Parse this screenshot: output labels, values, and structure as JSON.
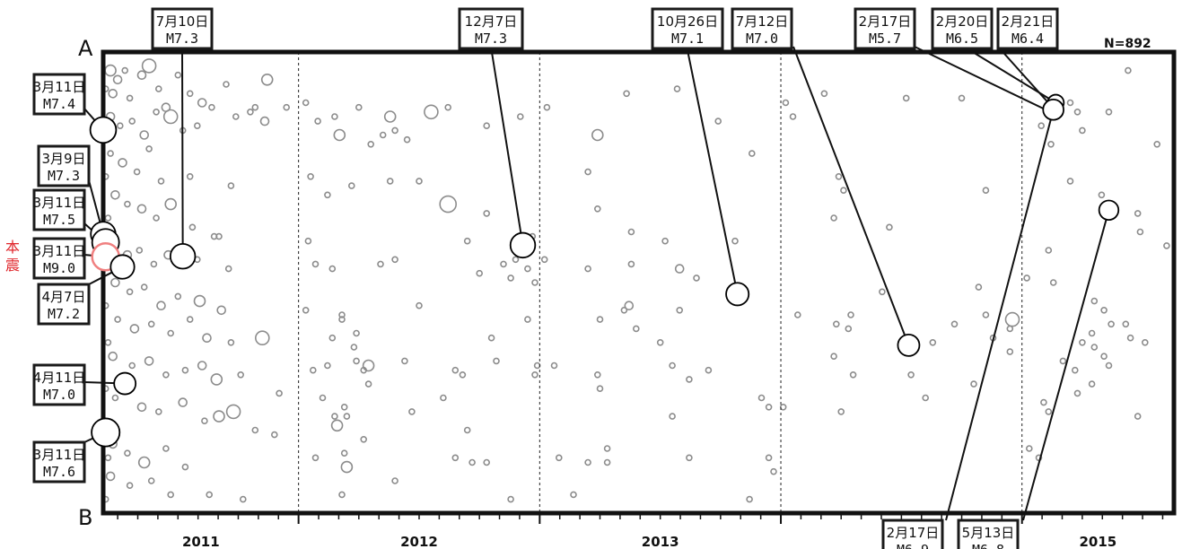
{
  "chart_data": {
    "type": "scatter",
    "title": "",
    "count_label": "N=892",
    "axis_start_label": "A",
    "axis_end_label": "B",
    "xlim": [
      2011.19,
      2015.63
    ],
    "ylim": [
      0,
      1
    ],
    "year_labels": [
      "2011",
      "2012",
      "2013",
      "2014",
      "2015"
    ],
    "year_boundaries": [
      2012.0,
      2013.0,
      2014.0,
      2015.0,
      2016.0
    ],
    "mainshock_label": "本震",
    "colors": {
      "background_event": "#8c8c8c",
      "major_event": "#000000",
      "mainshock": "#f08080",
      "mainshock_label": "#e0262b"
    },
    "major_events": [
      {
        "id": "e1",
        "date": "3月11日",
        "mag": "M7.4",
        "x": 2011.19,
        "y": 0.169
      },
      {
        "id": "e2",
        "date": "3月9日",
        "mag": "M7.3",
        "x": 2011.19,
        "y": 0.395
      },
      {
        "id": "e3",
        "date": "3月11日",
        "mag": "M7.5",
        "x": 2011.2,
        "y": 0.413
      },
      {
        "id": "e4",
        "date": "3月11日",
        "mag": "M9.0",
        "x": 2011.2,
        "y": 0.444,
        "mainshock": true
      },
      {
        "id": "e5",
        "date": "4月7日",
        "mag": "M7.2",
        "x": 2011.27,
        "y": 0.466
      },
      {
        "id": "e6",
        "date": "4月11日",
        "mag": "M7.0",
        "x": 2011.28,
        "y": 0.719
      },
      {
        "id": "e7",
        "date": "3月11日",
        "mag": "M7.6",
        "x": 2011.2,
        "y": 0.825
      },
      {
        "id": "e8",
        "date": "7月10日",
        "mag": "M7.3",
        "x": 2011.52,
        "y": 0.443
      },
      {
        "id": "e9",
        "date": "12月7日",
        "mag": "M7.3",
        "x": 2012.93,
        "y": 0.419
      },
      {
        "id": "e10",
        "date": "10月26日",
        "mag": "M7.1",
        "x": 2013.82,
        "y": 0.525
      },
      {
        "id": "e11",
        "date": "7月12日",
        "mag": "M7.0",
        "x": 2014.53,
        "y": 0.636
      },
      {
        "id": "e12",
        "date": "2月17日",
        "mag": "M5.7",
        "x": 2015.13,
        "y": 0.133
      },
      {
        "id": "e13",
        "date": "2月20日",
        "mag": "M6.5",
        "x": 2015.14,
        "y": 0.11
      },
      {
        "id": "e14",
        "date": "2月21日",
        "mag": "M6.4",
        "x": 2015.14,
        "y": 0.128
      },
      {
        "id": "e15",
        "date": "2月17日",
        "mag": "M6.9",
        "x": 2015.13,
        "y": 0.125
      },
      {
        "id": "e16",
        "date": "5月13日",
        "mag": "M6.8",
        "x": 2015.36,
        "y": 0.343
      }
    ],
    "events": [
      [
        2011.22,
        0.04,
        4
      ],
      [
        2011.25,
        0.06,
        3
      ],
      [
        2011.28,
        0.04,
        2
      ],
      [
        2011.23,
        0.09,
        3
      ],
      [
        2011.3,
        0.1,
        2
      ],
      [
        2011.35,
        0.05,
        3
      ],
      [
        2011.38,
        0.03,
        5
      ],
      [
        2011.42,
        0.08,
        2
      ],
      [
        2011.45,
        0.12,
        3
      ],
      [
        2011.5,
        0.05,
        2
      ],
      [
        2011.55,
        0.09,
        2
      ],
      [
        2011.6,
        0.11,
        3
      ],
      [
        2011.7,
        0.07,
        2
      ],
      [
        2011.8,
        0.13,
        2
      ],
      [
        2011.87,
        0.06,
        4
      ],
      [
        2011.95,
        0.12,
        2
      ],
      [
        2011.22,
        0.14,
        3
      ],
      [
        2011.26,
        0.16,
        2
      ],
      [
        2011.31,
        0.15,
        2
      ],
      [
        2011.36,
        0.18,
        3
      ],
      [
        2011.41,
        0.13,
        2
      ],
      [
        2011.47,
        0.14,
        5
      ],
      [
        2011.52,
        0.17,
        2
      ],
      [
        2011.58,
        0.16,
        2
      ],
      [
        2011.64,
        0.12,
        2
      ],
      [
        2011.74,
        0.14,
        2
      ],
      [
        2011.82,
        0.12,
        2
      ],
      [
        2011.86,
        0.15,
        3
      ],
      [
        2011.22,
        0.22,
        2
      ],
      [
        2011.27,
        0.24,
        3
      ],
      [
        2011.33,
        0.26,
        2
      ],
      [
        2011.38,
        0.21,
        2
      ],
      [
        2011.43,
        0.28,
        2
      ],
      [
        2011.55,
        0.27,
        2
      ],
      [
        2011.72,
        0.29,
        2
      ],
      [
        2011.24,
        0.31,
        3
      ],
      [
        2011.29,
        0.33,
        2
      ],
      [
        2011.35,
        0.34,
        3
      ],
      [
        2011.41,
        0.36,
        2
      ],
      [
        2011.47,
        0.33,
        4
      ],
      [
        2011.56,
        0.38,
        2
      ],
      [
        2011.65,
        0.4,
        2
      ],
      [
        2011.23,
        0.42,
        2
      ],
      [
        2011.29,
        0.44,
        3
      ],
      [
        2011.34,
        0.43,
        2
      ],
      [
        2011.4,
        0.46,
        2
      ],
      [
        2011.46,
        0.44,
        3
      ],
      [
        2011.58,
        0.45,
        2
      ],
      [
        2011.67,
        0.4,
        2
      ],
      [
        2011.71,
        0.47,
        2
      ],
      [
        2011.24,
        0.5,
        3
      ],
      [
        2011.3,
        0.52,
        2
      ],
      [
        2011.36,
        0.51,
        2
      ],
      [
        2011.43,
        0.55,
        3
      ],
      [
        2011.5,
        0.53,
        2
      ],
      [
        2011.59,
        0.54,
        4
      ],
      [
        2011.68,
        0.56,
        3
      ],
      [
        2011.25,
        0.58,
        2
      ],
      [
        2011.32,
        0.6,
        3
      ],
      [
        2011.39,
        0.59,
        2
      ],
      [
        2011.47,
        0.61,
        2
      ],
      [
        2011.55,
        0.58,
        2
      ],
      [
        2011.62,
        0.62,
        3
      ],
      [
        2011.72,
        0.63,
        2
      ],
      [
        2011.85,
        0.62,
        5
      ],
      [
        2011.23,
        0.66,
        3
      ],
      [
        2011.31,
        0.68,
        2
      ],
      [
        2011.38,
        0.67,
        3
      ],
      [
        2011.45,
        0.7,
        2
      ],
      [
        2011.53,
        0.69,
        2
      ],
      [
        2011.6,
        0.68,
        3
      ],
      [
        2011.66,
        0.71,
        4
      ],
      [
        2011.76,
        0.7,
        2
      ],
      [
        2011.92,
        0.74,
        2
      ],
      [
        2011.24,
        0.75,
        2
      ],
      [
        2011.35,
        0.77,
        3
      ],
      [
        2011.42,
        0.78,
        2
      ],
      [
        2011.52,
        0.76,
        3
      ],
      [
        2011.61,
        0.8,
        2
      ],
      [
        2011.67,
        0.79,
        4
      ],
      [
        2011.73,
        0.78,
        5
      ],
      [
        2011.82,
        0.82,
        2
      ],
      [
        2011.9,
        0.83,
        2
      ],
      [
        2011.23,
        0.85,
        3
      ],
      [
        2011.29,
        0.87,
        2
      ],
      [
        2011.36,
        0.89,
        4
      ],
      [
        2011.45,
        0.86,
        2
      ],
      [
        2011.53,
        0.9,
        2
      ],
      [
        2011.22,
        0.92,
        3
      ],
      [
        2011.3,
        0.94,
        2
      ],
      [
        2011.39,
        0.93,
        2
      ],
      [
        2011.47,
        0.96,
        2
      ],
      [
        2011.63,
        0.96,
        2
      ],
      [
        2011.77,
        0.97,
        2
      ],
      [
        2011.2,
        0.08,
        2
      ],
      [
        2011.21,
        0.18,
        2
      ],
      [
        2011.2,
        0.27,
        2
      ],
      [
        2011.21,
        0.36,
        2
      ],
      [
        2011.2,
        0.55,
        2
      ],
      [
        2011.21,
        0.63,
        2
      ],
      [
        2011.2,
        0.73,
        2
      ],
      [
        2011.21,
        0.88,
        2
      ],
      [
        2011.2,
        0.97,
        2
      ],
      [
        2012.03,
        0.11,
        2
      ],
      [
        2012.08,
        0.15,
        2
      ],
      [
        2012.15,
        0.14,
        2
      ],
      [
        2012.25,
        0.12,
        2
      ],
      [
        2012.38,
        0.14,
        4
      ],
      [
        2012.4,
        0.17,
        2
      ],
      [
        2012.45,
        0.19,
        2
      ],
      [
        2012.55,
        0.13,
        5
      ],
      [
        2012.62,
        0.12,
        2
      ],
      [
        2012.78,
        0.16,
        2
      ],
      [
        2012.92,
        0.14,
        2
      ],
      [
        2012.35,
        0.18,
        2
      ],
      [
        2012.3,
        0.2,
        2
      ],
      [
        2012.17,
        0.18,
        4
      ],
      [
        2012.05,
        0.27,
        2
      ],
      [
        2012.12,
        0.31,
        2
      ],
      [
        2012.22,
        0.29,
        2
      ],
      [
        2012.38,
        0.28,
        2
      ],
      [
        2012.5,
        0.28,
        2
      ],
      [
        2012.62,
        0.33,
        6
      ],
      [
        2012.78,
        0.35,
        2
      ],
      [
        2012.7,
        0.41,
        2
      ],
      [
        2012.85,
        0.46,
        2
      ],
      [
        2012.9,
        0.45,
        2
      ],
      [
        2012.95,
        0.47,
        2
      ],
      [
        2012.97,
        0.4,
        2
      ],
      [
        2012.04,
        0.41,
        2
      ],
      [
        2012.07,
        0.46,
        2
      ],
      [
        2012.14,
        0.47,
        2
      ],
      [
        2012.34,
        0.46,
        2
      ],
      [
        2012.4,
        0.45,
        2
      ],
      [
        2012.75,
        0.48,
        2
      ],
      [
        2012.88,
        0.49,
        2
      ],
      [
        2012.98,
        0.5,
        2
      ],
      [
        2012.03,
        0.56,
        2
      ],
      [
        2012.18,
        0.57,
        2
      ],
      [
        2012.24,
        0.61,
        2
      ],
      [
        2012.23,
        0.64,
        2
      ],
      [
        2012.18,
        0.58,
        2
      ],
      [
        2012.14,
        0.62,
        2
      ],
      [
        2012.5,
        0.55,
        2
      ],
      [
        2012.8,
        0.62,
        2
      ],
      [
        2012.95,
        0.58,
        2
      ],
      [
        2012.06,
        0.69,
        2
      ],
      [
        2012.12,
        0.68,
        2
      ],
      [
        2012.24,
        0.67,
        2
      ],
      [
        2012.27,
        0.69,
        2
      ],
      [
        2012.29,
        0.68,
        4
      ],
      [
        2012.29,
        0.72,
        2
      ],
      [
        2012.44,
        0.67,
        2
      ],
      [
        2012.65,
        0.69,
        2
      ],
      [
        2012.68,
        0.7,
        2
      ],
      [
        2012.82,
        0.67,
        2
      ],
      [
        2012.98,
        0.7,
        2
      ],
      [
        2012.99,
        0.68,
        2
      ],
      [
        2012.1,
        0.75,
        2
      ],
      [
        2012.15,
        0.79,
        2
      ],
      [
        2012.16,
        0.81,
        4
      ],
      [
        2012.2,
        0.79,
        2
      ],
      [
        2012.19,
        0.77,
        2
      ],
      [
        2012.27,
        0.84,
        2
      ],
      [
        2012.47,
        0.78,
        2
      ],
      [
        2012.6,
        0.75,
        2
      ],
      [
        2012.7,
        0.82,
        2
      ],
      [
        2012.07,
        0.88,
        2
      ],
      [
        2012.19,
        0.87,
        2
      ],
      [
        2012.2,
        0.9,
        4
      ],
      [
        2012.65,
        0.88,
        2
      ],
      [
        2012.72,
        0.89,
        2
      ],
      [
        2012.78,
        0.89,
        2
      ],
      [
        2012.18,
        0.96,
        2
      ],
      [
        2012.4,
        0.93,
        2
      ],
      [
        2012.88,
        0.97,
        2
      ],
      [
        2013.03,
        0.12,
        2
      ],
      [
        2013.24,
        0.18,
        4
      ],
      [
        2013.36,
        0.09,
        2
      ],
      [
        2013.57,
        0.08,
        2
      ],
      [
        2013.74,
        0.15,
        2
      ],
      [
        2013.88,
        0.22,
        2
      ],
      [
        2013.2,
        0.26,
        2
      ],
      [
        2013.24,
        0.34,
        2
      ],
      [
        2013.38,
        0.39,
        2
      ],
      [
        2013.52,
        0.41,
        2
      ],
      [
        2013.81,
        0.41,
        2
      ],
      [
        2013.02,
        0.45,
        2
      ],
      [
        2013.2,
        0.47,
        2
      ],
      [
        2013.38,
        0.46,
        2
      ],
      [
        2013.58,
        0.47,
        3
      ],
      [
        2013.65,
        0.49,
        2
      ],
      [
        2013.25,
        0.58,
        2
      ],
      [
        2013.35,
        0.56,
        2
      ],
      [
        2013.37,
        0.55,
        3
      ],
      [
        2013.58,
        0.56,
        2
      ],
      [
        2013.4,
        0.6,
        2
      ],
      [
        2013.5,
        0.63,
        2
      ],
      [
        2013.06,
        0.68,
        2
      ],
      [
        2013.24,
        0.7,
        2
      ],
      [
        2013.55,
        0.68,
        2
      ],
      [
        2013.62,
        0.71,
        2
      ],
      [
        2013.7,
        0.69,
        2
      ],
      [
        2013.25,
        0.73,
        2
      ],
      [
        2013.55,
        0.79,
        2
      ],
      [
        2013.92,
        0.75,
        2
      ],
      [
        2013.95,
        0.77,
        2
      ],
      [
        2013.08,
        0.88,
        2
      ],
      [
        2013.2,
        0.89,
        2
      ],
      [
        2013.28,
        0.89,
        2
      ],
      [
        2013.28,
        0.86,
        2
      ],
      [
        2013.62,
        0.88,
        2
      ],
      [
        2013.95,
        0.88,
        2
      ],
      [
        2013.97,
        0.91,
        2
      ],
      [
        2013.14,
        0.96,
        2
      ],
      [
        2013.87,
        0.97,
        2
      ],
      [
        2014.02,
        0.11,
        2
      ],
      [
        2014.05,
        0.14,
        2
      ],
      [
        2014.18,
        0.09,
        2
      ],
      [
        2014.52,
        0.1,
        2
      ],
      [
        2014.75,
        0.1,
        2
      ],
      [
        2014.26,
        0.3,
        2
      ],
      [
        2014.24,
        0.27,
        2
      ],
      [
        2014.22,
        0.36,
        2
      ],
      [
        2014.45,
        0.38,
        2
      ],
      [
        2014.85,
        0.3,
        2
      ],
      [
        2014.42,
        0.52,
        2
      ],
      [
        2014.82,
        0.51,
        2
      ],
      [
        2014.07,
        0.57,
        2
      ],
      [
        2014.23,
        0.59,
        2
      ],
      [
        2014.28,
        0.6,
        2
      ],
      [
        2014.29,
        0.57,
        2
      ],
      [
        2014.72,
        0.59,
        2
      ],
      [
        2014.85,
        0.57,
        2
      ],
      [
        2014.95,
        0.6,
        2
      ],
      [
        2014.96,
        0.58,
        5
      ],
      [
        2014.22,
        0.66,
        2
      ],
      [
        2014.3,
        0.7,
        2
      ],
      [
        2014.54,
        0.7,
        2
      ],
      [
        2014.63,
        0.63,
        2
      ],
      [
        2014.88,
        0.62,
        2
      ],
      [
        2014.95,
        0.65,
        2
      ],
      [
        2014.01,
        0.77,
        2
      ],
      [
        2014.25,
        0.78,
        2
      ],
      [
        2014.8,
        0.72,
        2
      ],
      [
        2014.6,
        0.75,
        2
      ],
      [
        2015.03,
        0.86,
        2
      ],
      [
        2015.07,
        0.88,
        2
      ],
      [
        2015.13,
        0.5,
        2
      ],
      [
        2015.02,
        0.49,
        2
      ],
      [
        2015.08,
        0.16,
        2
      ],
      [
        2015.12,
        0.2,
        2
      ],
      [
        2015.2,
        0.11,
        2
      ],
      [
        2015.23,
        0.13,
        2
      ],
      [
        2015.25,
        0.17,
        2
      ],
      [
        2015.36,
        0.13,
        2
      ],
      [
        2015.44,
        0.04,
        2
      ],
      [
        2015.56,
        0.2,
        2
      ],
      [
        2015.3,
        0.54,
        2
      ],
      [
        2015.48,
        0.35,
        2
      ],
      [
        2015.6,
        0.42,
        2
      ],
      [
        2015.49,
        0.39,
        2
      ],
      [
        2015.11,
        0.43,
        2
      ],
      [
        2015.37,
        0.59,
        2
      ],
      [
        2015.29,
        0.61,
        2
      ],
      [
        2015.34,
        0.56,
        2
      ],
      [
        2015.25,
        0.63,
        2
      ],
      [
        2015.3,
        0.64,
        2
      ],
      [
        2015.34,
        0.66,
        2
      ],
      [
        2015.43,
        0.59,
        2
      ],
      [
        2015.45,
        0.62,
        2
      ],
      [
        2015.51,
        0.63,
        2
      ],
      [
        2015.29,
        0.72,
        2
      ],
      [
        2015.36,
        0.68,
        2
      ],
      [
        2015.22,
        0.69,
        2
      ],
      [
        2015.48,
        0.79,
        2
      ],
      [
        2015.23,
        0.74,
        2
      ],
      [
        2015.17,
        0.67,
        2
      ],
      [
        2015.09,
        0.76,
        2
      ],
      [
        2015.11,
        0.78,
        2
      ],
      [
        2015.2,
        0.28,
        2
      ],
      [
        2015.33,
        0.31,
        2
      ]
    ]
  }
}
